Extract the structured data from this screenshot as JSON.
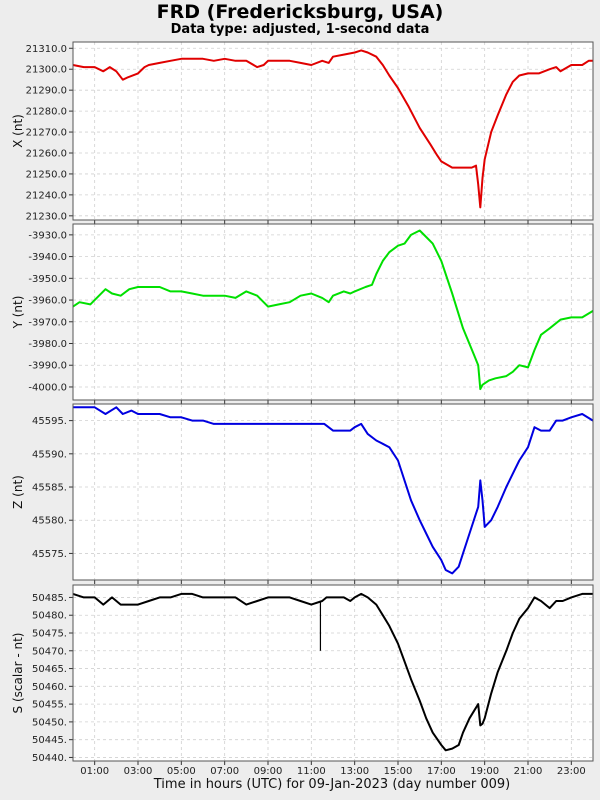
{
  "header": {
    "title": "FRD (Fredericksburg, USA)",
    "subtitle": "Data type: adjusted, 1-second data"
  },
  "x_axis_label": "Time in hours (UTC) for 09-Jan-2023 (day number 009)",
  "chart_data": [
    {
      "type": "line",
      "ylabel": "X (nt)",
      "color": "#e00000",
      "xlim": [
        0,
        24
      ],
      "ylim": [
        21228,
        21313
      ],
      "grid": true,
      "yticks": [
        21230,
        21240,
        21250,
        21260,
        21270,
        21280,
        21290,
        21300,
        21310
      ],
      "ytick_labels": [
        "21230.0",
        "21240.0",
        "21250.0",
        "21260.0",
        "21270.0",
        "21280.0",
        "21290.0",
        "21300.0",
        "21310.0"
      ],
      "xticks": [
        1,
        3,
        5,
        7,
        9,
        11,
        13,
        15,
        17,
        19,
        21,
        23
      ],
      "x": [
        0,
        0.5,
        1,
        1.4,
        1.7,
        2.0,
        2.3,
        2.5,
        3.0,
        3.3,
        3.5,
        4.0,
        4.5,
        5.0,
        5.5,
        6.0,
        6.5,
        7.0,
        7.5,
        8.0,
        8.5,
        8.8,
        9.0,
        9.5,
        10.0,
        10.5,
        11.0,
        11.5,
        11.8,
        12.0,
        12.5,
        13.0,
        13.3,
        13.6,
        14.0,
        14.3,
        14.6,
        15.0,
        15.5,
        16.0,
        16.5,
        16.8,
        17.0,
        17.5,
        18.0,
        18.4,
        18.6,
        18.7,
        18.8,
        18.9,
        19.0,
        19.3,
        19.6,
        20.0,
        20.3,
        20.6,
        21.0,
        21.5,
        22.0,
        22.3,
        22.5,
        23.0,
        23.5,
        23.8,
        24.0
      ],
      "values": [
        21302,
        21301,
        21301,
        21299,
        21301,
        21299,
        21295,
        21296,
        21298,
        21301,
        21302,
        21303,
        21304,
        21305,
        21305,
        21305,
        21304,
        21305,
        21304,
        21304,
        21301,
        21302,
        21304,
        21304,
        21304,
        21303,
        21302,
        21304,
        21303,
        21306,
        21307,
        21308,
        21309,
        21308,
        21306,
        21302,
        21297,
        21291,
        21282,
        21272,
        21264,
        21259,
        21256,
        21253,
        21253,
        21253,
        21254,
        21245,
        21234,
        21248,
        21257,
        21270,
        21278,
        21288,
        21294,
        21297,
        21298,
        21298,
        21300,
        21301,
        21299,
        21302,
        21302,
        21304,
        21304
      ]
    },
    {
      "type": "line",
      "ylabel": "Y (nt)",
      "color": "#00e000",
      "xlim": [
        0,
        24
      ],
      "ylim": [
        -4006,
        -3925
      ],
      "grid": true,
      "yticks": [
        -4000,
        -3990,
        -3980,
        -3970,
        -3960,
        -3950,
        -3940,
        -3930
      ],
      "ytick_labels": [
        "-4000.0",
        "-3990.0",
        "-3980.0",
        "-3970.0",
        "-3960.0",
        "-3950.0",
        "-3940.0",
        "-3930.0"
      ],
      "xticks": [
        1,
        3,
        5,
        7,
        9,
        11,
        13,
        15,
        17,
        19,
        21,
        23
      ],
      "x": [
        0,
        0.3,
        0.8,
        1.2,
        1.5,
        1.8,
        2.2,
        2.6,
        3.0,
        3.5,
        4.0,
        4.5,
        5.0,
        5.5,
        6.0,
        6.5,
        7.0,
        7.5,
        8.0,
        8.5,
        9.0,
        9.5,
        10.0,
        10.5,
        11.0,
        11.5,
        11.8,
        12.0,
        12.5,
        12.8,
        13.0,
        13.5,
        13.8,
        14.0,
        14.3,
        14.6,
        15.0,
        15.3,
        15.6,
        16.0,
        16.3,
        16.6,
        17.0,
        17.5,
        18.0,
        18.5,
        18.7,
        18.8,
        18.9,
        19.2,
        19.5,
        20.0,
        20.3,
        20.6,
        21.0,
        21.3,
        21.6,
        22.0,
        22.5,
        23.0,
        23.5,
        24.0
      ],
      "values": [
        -3963,
        -3961,
        -3962,
        -3958,
        -3955,
        -3957,
        -3958,
        -3955,
        -3954,
        -3954,
        -3954,
        -3956,
        -3956,
        -3957,
        -3958,
        -3958,
        -3958,
        -3959,
        -3956,
        -3958,
        -3963,
        -3962,
        -3961,
        -3958,
        -3957,
        -3959,
        -3961,
        -3958,
        -3956,
        -3957,
        -3956,
        -3954,
        -3953,
        -3948,
        -3942,
        -3938,
        -3935,
        -3934,
        -3930,
        -3928,
        -3931,
        -3934,
        -3942,
        -3957,
        -3973,
        -3985,
        -3990,
        -4001,
        -3999,
        -3997,
        -3996,
        -3995,
        -3993,
        -3990,
        -3991,
        -3983,
        -3976,
        -3973,
        -3969,
        -3968,
        -3968,
        -3965
      ]
    },
    {
      "type": "line",
      "ylabel": "Z (nt)",
      "color": "#0000e0",
      "xlim": [
        0,
        24
      ],
      "ylim": [
        45571,
        45597.5
      ],
      "grid": true,
      "yticks": [
        45575,
        45580,
        45585,
        45590,
        45595
      ],
      "ytick_labels": [
        "45575.",
        "45580.",
        "45585.",
        "45590.",
        "45595."
      ],
      "xticks": [
        1,
        3,
        5,
        7,
        9,
        11,
        13,
        15,
        17,
        19,
        21,
        23
      ],
      "x": [
        0,
        0.5,
        1,
        1.5,
        2.0,
        2.3,
        2.7,
        3.0,
        3.5,
        4.0,
        4.5,
        5.0,
        5.5,
        6.0,
        6.5,
        7.0,
        7.5,
        8.0,
        8.5,
        9.0,
        9.5,
        10.0,
        10.5,
        11.0,
        11.3,
        11.6,
        12.0,
        12.5,
        12.8,
        13.0,
        13.3,
        13.6,
        14.0,
        14.3,
        14.6,
        15.0,
        15.3,
        15.6,
        16.0,
        16.3,
        16.6,
        17.0,
        17.2,
        17.5,
        17.8,
        18.0,
        18.3,
        18.6,
        18.7,
        18.8,
        18.9,
        19.0,
        19.3,
        19.6,
        20.0,
        20.3,
        20.6,
        21.0,
        21.3,
        21.6,
        22.0,
        22.3,
        22.6,
        23.0,
        23.5,
        24.0
      ],
      "values": [
        45597,
        45597,
        45597,
        45596,
        45597,
        45596,
        45596.5,
        45596,
        45596,
        45596,
        45595.5,
        45595.5,
        45595,
        45595,
        45594.5,
        45594.5,
        45594.5,
        45594.5,
        45594.5,
        45594.5,
        45594.5,
        45594.5,
        45594.5,
        45594.5,
        45594.5,
        45594.5,
        45593.5,
        45593.5,
        45593.5,
        45594,
        45594.5,
        45593,
        45592,
        45591.5,
        45591,
        45589,
        45586,
        45583,
        45580,
        45578,
        45576,
        45574,
        45572.5,
        45572,
        45573,
        45575,
        45578,
        45581,
        45582,
        45586,
        45583,
        45579,
        45580,
        45582,
        45585,
        45587,
        45589,
        45591,
        45594,
        45593.5,
        45593.5,
        45595,
        45595,
        45595.5,
        45596,
        45595
      ]
    },
    {
      "type": "line",
      "ylabel": "S (scalar - nt)",
      "color": "#000000",
      "xlim": [
        0,
        24
      ],
      "ylim": [
        50439,
        50488.5
      ],
      "grid": true,
      "yticks": [
        50440,
        50445,
        50450,
        50455,
        50460,
        50465,
        50470,
        50475,
        50480,
        50485
      ],
      "ytick_labels": [
        "50440.",
        "50445.",
        "50450.",
        "50455.",
        "50460.",
        "50465.",
        "50470.",
        "50475.",
        "50480.",
        "50485."
      ],
      "xticks": [
        1,
        3,
        5,
        7,
        9,
        11,
        13,
        15,
        17,
        19,
        21,
        23
      ],
      "x": [
        0,
        0.5,
        1,
        1.4,
        1.8,
        2.2,
        2.5,
        3.0,
        3.5,
        4.0,
        4.5,
        5.0,
        5.5,
        6.0,
        6.5,
        7.0,
        7.5,
        8.0,
        8.5,
        9.0,
        9.5,
        10.0,
        10.5,
        11.0,
        11.5,
        11.7,
        12.0,
        12.5,
        12.8,
        13.0,
        13.3,
        13.6,
        14.0,
        14.3,
        14.6,
        15.0,
        15.3,
        15.6,
        16.0,
        16.3,
        16.6,
        17.0,
        17.2,
        17.5,
        17.8,
        18.0,
        18.3,
        18.6,
        18.7,
        18.8,
        18.9,
        19.0,
        19.3,
        19.6,
        20.0,
        20.3,
        20.6,
        21.0,
        21.3,
        21.6,
        22.0,
        22.3,
        22.6,
        23.0,
        23.5,
        24.0
      ],
      "values": [
        50486,
        50485,
        50485,
        50483,
        50485,
        50483,
        50483,
        50483,
        50484,
        50485,
        50485,
        50486,
        50486,
        50485,
        50485,
        50485,
        50485,
        50483,
        50484,
        50485,
        50485,
        50485,
        50484,
        50483,
        50484,
        50485,
        50485,
        50485,
        50484,
        50485,
        50486,
        50485,
        50483,
        50480,
        50477,
        50472,
        50467,
        50462,
        50456,
        50451,
        50447,
        50443.5,
        50442,
        50442.5,
        50443.5,
        50447,
        50451,
        50454,
        50455,
        50449,
        50449.5,
        50451,
        50458,
        50464,
        50470,
        50475,
        50479,
        50482,
        50485,
        50484,
        50482,
        50484,
        50484,
        50485,
        50486,
        50486
      ],
      "spikes": [
        {
          "x": 11.42,
          "to": 50470
        }
      ]
    }
  ]
}
